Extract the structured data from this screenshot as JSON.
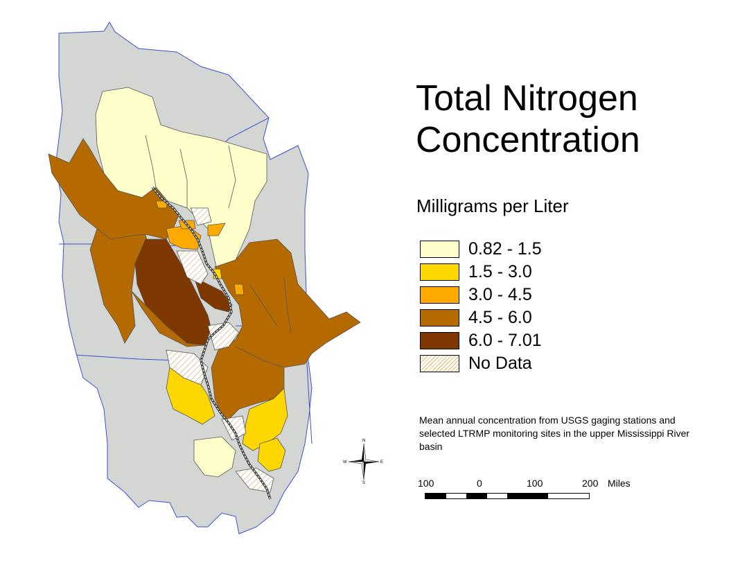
{
  "title_line1": "Total Nitrogen",
  "title_line2": "Concentration",
  "subtitle": "Milligrams per Liter",
  "legend": [
    {
      "label": "0.82 - 1.5",
      "color": "#ffffcc"
    },
    {
      "label": "1.5 - 3.0",
      "color": "#ffd700"
    },
    {
      "label": "3.0 - 4.5",
      "color": "#ffaa00"
    },
    {
      "label": "4.5 - 6.0",
      "color": "#b56a00"
    },
    {
      "label": "6.0 - 7.01",
      "color": "#7f3700"
    },
    {
      "label": "No Data",
      "color": "hatch"
    }
  ],
  "caption": "Mean annual concentration from USGS gaging stations and selected LTRMP monitoring sites in the upper Mississippi River basin",
  "scale": {
    "labels": [
      "100",
      "0",
      "100",
      "200",
      "Miles"
    ]
  },
  "compass": {
    "n": "N",
    "s": "S",
    "e": "E",
    "w": "W"
  },
  "colors": {
    "state_fill": "#d3d6d3",
    "state_border": "#3d50c8",
    "river": "#404040"
  }
}
